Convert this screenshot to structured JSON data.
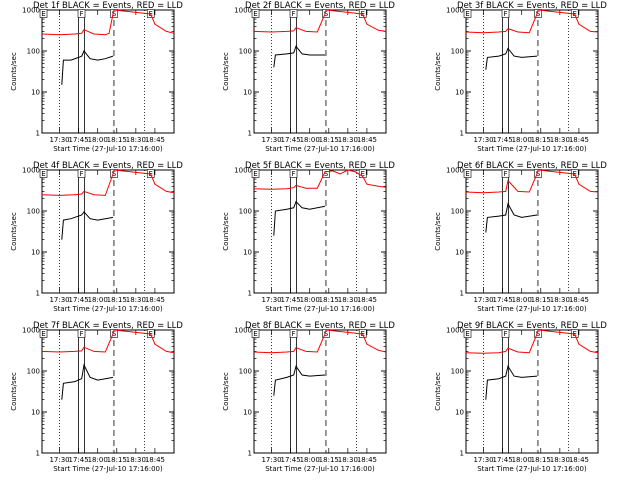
{
  "x_axis_label": "Start Time (27-Jul-10 17:16:00)",
  "y_axis_label": "Counts/sec",
  "x_tick_labels": [
    "17:30",
    "17:45",
    "18:00",
    "18:15",
    "18:30",
    "18:45"
  ],
  "y_tick_labels": [
    "1",
    "10",
    "100",
    "1000"
  ],
  "colors": {
    "events": "#000000",
    "lld": "#ff0000"
  },
  "chart_data": [
    {
      "type": "line",
      "title": "Det 1f BLACK = Events, RED = LLD",
      "markers": {
        "E": 17.27,
        "F": 17.788,
        "S": 18.213,
        "E2": 18.695
      },
      "dotted_lines": [
        17.5,
        18.615
      ],
      "dashed_lines": [
        18.213
      ],
      "events": [
        [
          17.53,
          15
        ],
        [
          17.55,
          60
        ],
        [
          17.65,
          60
        ],
        [
          17.75,
          70
        ],
        [
          17.79,
          75
        ],
        [
          17.82,
          100
        ],
        [
          17.9,
          65
        ],
        [
          18.0,
          60
        ],
        [
          18.1,
          65
        ],
        [
          18.2,
          75
        ]
      ],
      "lld": [
        [
          17.27,
          260
        ],
        [
          17.5,
          250
        ],
        [
          17.7,
          260
        ],
        [
          17.79,
          270
        ],
        [
          17.82,
          330
        ],
        [
          17.95,
          260
        ],
        [
          18.1,
          250
        ],
        [
          18.15,
          270
        ],
        [
          18.2,
          800
        ],
        [
          18.213,
          1000
        ],
        [
          18.695,
          800
        ],
        [
          18.75,
          450
        ],
        [
          18.9,
          300
        ],
        [
          19.0,
          270
        ]
      ],
      "xlim": [
        17.27,
        19.0
      ],
      "ylim": [
        1,
        1000
      ]
    },
    {
      "type": "line",
      "title": "Det 2f BLACK = Events, RED = LLD",
      "markers": {
        "E": 17.27,
        "F": 17.788,
        "S": 18.213,
        "E2": 18.695
      },
      "dotted_lines": [
        17.5,
        18.615
      ],
      "dashed_lines": [
        18.213
      ],
      "events": [
        [
          17.53,
          40
        ],
        [
          17.55,
          80
        ],
        [
          17.7,
          85
        ],
        [
          17.79,
          90
        ],
        [
          17.82,
          130
        ],
        [
          17.9,
          85
        ],
        [
          18.0,
          80
        ],
        [
          18.2,
          80
        ]
      ],
      "lld": [
        [
          17.27,
          300
        ],
        [
          17.5,
          290
        ],
        [
          17.7,
          300
        ],
        [
          17.79,
          310
        ],
        [
          17.82,
          370
        ],
        [
          17.95,
          300
        ],
        [
          18.1,
          290
        ],
        [
          18.2,
          800
        ],
        [
          18.213,
          1000
        ],
        [
          18.695,
          800
        ],
        [
          18.75,
          450
        ],
        [
          18.9,
          320
        ],
        [
          19.0,
          300
        ]
      ],
      "xlim": [
        17.27,
        19.0
      ],
      "ylim": [
        1,
        1000
      ]
    },
    {
      "type": "line",
      "title": "Det 3f BLACK = Events, RED = LLD",
      "markers": {
        "E": 17.27,
        "F": 17.788,
        "S": 18.213,
        "E2": 18.695
      },
      "dotted_lines": [
        17.5,
        18.615
      ],
      "dashed_lines": [
        18.213
      ],
      "events": [
        [
          17.53,
          35
        ],
        [
          17.55,
          70
        ],
        [
          17.7,
          75
        ],
        [
          17.79,
          85
        ],
        [
          17.82,
          115
        ],
        [
          17.9,
          75
        ],
        [
          18.0,
          70
        ],
        [
          18.2,
          75
        ]
      ],
      "lld": [
        [
          17.27,
          290
        ],
        [
          17.5,
          280
        ],
        [
          17.7,
          290
        ],
        [
          17.79,
          300
        ],
        [
          17.82,
          350
        ],
        [
          17.95,
          290
        ],
        [
          18.1,
          280
        ],
        [
          18.2,
          800
        ],
        [
          18.213,
          1000
        ],
        [
          18.695,
          800
        ],
        [
          18.75,
          450
        ],
        [
          18.9,
          300
        ],
        [
          19.0,
          290
        ]
      ],
      "xlim": [
        17.27,
        19.0
      ],
      "ylim": [
        1,
        1000
      ]
    },
    {
      "type": "line",
      "title": "Det 4f BLACK = Events, RED = LLD",
      "markers": {
        "E": 17.27,
        "F": 17.788,
        "S": 18.213,
        "E2": 18.695
      },
      "dotted_lines": [
        17.5,
        18.615
      ],
      "dashed_lines": [
        18.213
      ],
      "events": [
        [
          17.53,
          20
        ],
        [
          17.55,
          60
        ],
        [
          17.65,
          65
        ],
        [
          17.79,
          80
        ],
        [
          17.82,
          95
        ],
        [
          17.9,
          65
        ],
        [
          18.0,
          60
        ],
        [
          18.2,
          70
        ]
      ],
      "lld": [
        [
          17.27,
          250
        ],
        [
          17.5,
          240
        ],
        [
          17.7,
          250
        ],
        [
          17.79,
          260
        ],
        [
          17.82,
          300
        ],
        [
          17.95,
          250
        ],
        [
          18.1,
          240
        ],
        [
          18.2,
          800
        ],
        [
          18.213,
          1000
        ],
        [
          18.695,
          800
        ],
        [
          18.75,
          450
        ],
        [
          18.9,
          300
        ],
        [
          19.0,
          280
        ]
      ],
      "xlim": [
        17.27,
        19.0
      ],
      "ylim": [
        1,
        1000
      ]
    },
    {
      "type": "line",
      "title": "Det 5f BLACK = Events, RED = LLD",
      "markers": {
        "E": 17.27,
        "F": 17.788,
        "S": 18.213,
        "E2": 18.695
      },
      "dotted_lines": [
        17.5,
        18.615
      ],
      "dashed_lines": [
        18.213
      ],
      "events": [
        [
          17.53,
          25
        ],
        [
          17.55,
          100
        ],
        [
          17.7,
          110
        ],
        [
          17.79,
          120
        ],
        [
          17.82,
          170
        ],
        [
          17.9,
          120
        ],
        [
          18.0,
          110
        ],
        [
          18.2,
          130
        ]
      ],
      "lld": [
        [
          17.27,
          350
        ],
        [
          17.5,
          340
        ],
        [
          17.7,
          350
        ],
        [
          17.79,
          370
        ],
        [
          17.82,
          420
        ],
        [
          17.95,
          360
        ],
        [
          18.1,
          360
        ],
        [
          18.2,
          900
        ],
        [
          18.3,
          950
        ],
        [
          18.4,
          800
        ],
        [
          18.5,
          1000
        ],
        [
          18.6,
          900
        ],
        [
          18.695,
          700
        ],
        [
          18.75,
          450
        ],
        [
          18.9,
          400
        ],
        [
          19.0,
          380
        ]
      ],
      "xlim": [
        17.27,
        19.0
      ],
      "ylim": [
        1,
        1000
      ]
    },
    {
      "type": "line",
      "title": "Det 6f BLACK = Events, RED = LLD",
      "markers": {
        "E": 17.27,
        "F": 17.788,
        "S": 18.213,
        "E2": 18.695
      },
      "dotted_lines": [
        17.5,
        18.615
      ],
      "dashed_lines": [
        18.213
      ],
      "events": [
        [
          17.53,
          30
        ],
        [
          17.55,
          70
        ],
        [
          17.7,
          75
        ],
        [
          17.79,
          80
        ],
        [
          17.82,
          150
        ],
        [
          17.9,
          80
        ],
        [
          18.0,
          70
        ],
        [
          18.2,
          80
        ]
      ],
      "lld": [
        [
          17.27,
          290
        ],
        [
          17.5,
          280
        ],
        [
          17.7,
          290
        ],
        [
          17.79,
          300
        ],
        [
          17.82,
          550
        ],
        [
          17.95,
          300
        ],
        [
          18.1,
          290
        ],
        [
          18.2,
          800
        ],
        [
          18.213,
          1000
        ],
        [
          18.695,
          800
        ],
        [
          18.75,
          450
        ],
        [
          18.9,
          300
        ],
        [
          19.0,
          290
        ]
      ],
      "xlim": [
        17.27,
        19.0
      ],
      "ylim": [
        1,
        1000
      ]
    },
    {
      "type": "line",
      "title": "Det 7f BLACK = Events, RED = LLD",
      "markers": {
        "E": 17.27,
        "F": 17.788,
        "S": 18.213,
        "E2": 18.695
      },
      "dotted_lines": [
        17.5,
        18.615
      ],
      "dashed_lines": [
        18.213
      ],
      "events": [
        [
          17.53,
          20
        ],
        [
          17.55,
          50
        ],
        [
          17.7,
          55
        ],
        [
          17.79,
          65
        ],
        [
          17.82,
          140
        ],
        [
          17.9,
          70
        ],
        [
          18.0,
          60
        ],
        [
          18.2,
          70
        ]
      ],
      "lld": [
        [
          17.27,
          300
        ],
        [
          17.5,
          290
        ],
        [
          17.7,
          300
        ],
        [
          17.79,
          310
        ],
        [
          17.82,
          380
        ],
        [
          17.95,
          300
        ],
        [
          18.1,
          290
        ],
        [
          18.2,
          800
        ],
        [
          18.213,
          1000
        ],
        [
          18.695,
          800
        ],
        [
          18.75,
          450
        ],
        [
          18.9,
          300
        ],
        [
          19.0,
          280
        ]
      ],
      "xlim": [
        17.27,
        19.0
      ],
      "ylim": [
        1,
        1000
      ]
    },
    {
      "type": "line",
      "title": "Det 8f BLACK = Events, RED = LLD",
      "markers": {
        "E": 17.27,
        "F": 17.788,
        "S": 18.213,
        "E2": 18.695
      },
      "dotted_lines": [
        17.5,
        18.615
      ],
      "dashed_lines": [
        18.213
      ],
      "events": [
        [
          17.53,
          25
        ],
        [
          17.55,
          60
        ],
        [
          17.7,
          70
        ],
        [
          17.79,
          80
        ],
        [
          17.82,
          130
        ],
        [
          17.9,
          80
        ],
        [
          18.0,
          75
        ],
        [
          18.2,
          80
        ]
      ],
      "lld": [
        [
          17.27,
          290
        ],
        [
          17.5,
          280
        ],
        [
          17.7,
          290
        ],
        [
          17.79,
          300
        ],
        [
          17.82,
          370
        ],
        [
          17.95,
          300
        ],
        [
          18.1,
          290
        ],
        [
          18.2,
          800
        ],
        [
          18.213,
          1000
        ],
        [
          18.695,
          800
        ],
        [
          18.75,
          450
        ],
        [
          18.9,
          320
        ],
        [
          19.0,
          290
        ]
      ],
      "xlim": [
        17.27,
        19.0
      ],
      "ylim": [
        1,
        1000
      ]
    },
    {
      "type": "line",
      "title": "Det 9f BLACK = Events, RED = LLD",
      "markers": {
        "E": 17.27,
        "F": 17.788,
        "S": 18.213,
        "E2": 18.695
      },
      "dotted_lines": [
        17.5,
        18.615
      ],
      "dashed_lines": [
        18.213
      ],
      "events": [
        [
          17.53,
          20
        ],
        [
          17.55,
          60
        ],
        [
          17.7,
          65
        ],
        [
          17.79,
          75
        ],
        [
          17.82,
          130
        ],
        [
          17.9,
          75
        ],
        [
          18.0,
          70
        ],
        [
          18.2,
          75
        ]
      ],
      "lld": [
        [
          17.27,
          280
        ],
        [
          17.5,
          270
        ],
        [
          17.7,
          280
        ],
        [
          17.79,
          300
        ],
        [
          17.82,
          360
        ],
        [
          17.95,
          290
        ],
        [
          18.1,
          280
        ],
        [
          18.2,
          800
        ],
        [
          18.213,
          1000
        ],
        [
          18.695,
          800
        ],
        [
          18.75,
          450
        ],
        [
          18.9,
          300
        ],
        [
          19.0,
          280
        ]
      ],
      "xlim": [
        17.27,
        19.0
      ],
      "ylim": [
        1,
        1000
      ]
    }
  ]
}
